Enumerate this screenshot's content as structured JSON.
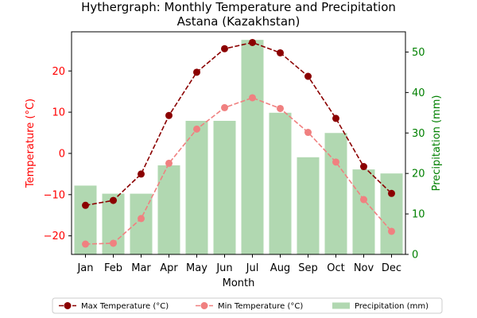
{
  "chart_data": {
    "type": "bar",
    "title": "Hythergraph: Monthly Temperature and Precipitation\nAstana (Kazakhstan)",
    "xlabel": "Month",
    "ylabel_left": "Temperature (°C)",
    "ylabel_right": "Precipitation (mm)",
    "categories": [
      "Jan",
      "Feb",
      "Mar",
      "Apr",
      "May",
      "Jun",
      "Jul",
      "Aug",
      "Sep",
      "Oct",
      "Nov",
      "Dec"
    ],
    "ylim_left": [
      -24.5,
      29.5
    ],
    "ylim_right": [
      0,
      55
    ],
    "yticks_left": [
      -20,
      -10,
      0,
      10,
      20
    ],
    "yticks_right": [
      0,
      10,
      20,
      30,
      40,
      50
    ],
    "grid": false,
    "legend_placement": "bottom-center",
    "series": [
      {
        "name": "Max Temperature (°C)",
        "type": "line",
        "axis": "left",
        "color": "#8b0000",
        "line_style": "dashed",
        "marker": "circle",
        "values": [
          -12.6,
          -11.4,
          -5.0,
          9.2,
          19.7,
          25.4,
          26.9,
          24.4,
          18.7,
          8.5,
          -3.2,
          -9.7
        ]
      },
      {
        "name": "Min Temperature (°C)",
        "type": "line",
        "axis": "left",
        "color": "#f08080",
        "line_style": "dashed",
        "marker": "circle",
        "values": [
          -22.0,
          -21.8,
          -15.8,
          -2.4,
          5.9,
          11.1,
          13.5,
          10.9,
          5.1,
          -2.1,
          -11.2,
          -18.9
        ]
      },
      {
        "name": "Precipitation (mm)",
        "type": "bar",
        "axis": "right",
        "color": "#b1d8b1",
        "values": [
          17,
          15,
          15,
          22,
          33,
          33,
          53,
          35,
          24,
          30,
          21,
          20
        ]
      }
    ]
  }
}
